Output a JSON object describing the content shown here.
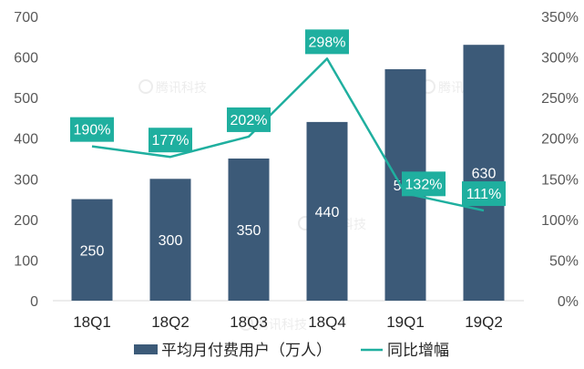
{
  "chart_data": {
    "type": "bar",
    "categories": [
      "18Q1",
      "18Q2",
      "18Q3",
      "18Q4",
      "19Q1",
      "19Q2"
    ],
    "series": [
      {
        "name": "平均月付费用户（万人）",
        "type": "bar",
        "axis": "left",
        "values": [
          250,
          300,
          350,
          440,
          570,
          630
        ],
        "labels": [
          "250",
          "300",
          "350",
          "440",
          "570",
          "630"
        ]
      },
      {
        "name": "同比增幅",
        "type": "line",
        "axis": "right",
        "values": [
          190,
          177,
          202,
          298,
          132,
          111
        ],
        "labels": [
          "190%",
          "177%",
          "202%",
          "298%",
          "132%",
          "111%"
        ]
      }
    ],
    "y_left": {
      "min": 0,
      "max": 700,
      "step": 100,
      "ticks": [
        "0",
        "100",
        "200",
        "300",
        "400",
        "500",
        "600",
        "700"
      ]
    },
    "y_right": {
      "min": 0,
      "max": 350,
      "step": 50,
      "ticks": [
        "0%",
        "50%",
        "100%",
        "150%",
        "200%",
        "250%",
        "300%",
        "350%"
      ]
    },
    "grid": false,
    "legend_position": "bottom",
    "colors": {
      "bar": "#3C5A78",
      "line": "#1FAF9F",
      "label_box": "#1FAF9F"
    }
  },
  "legend": {
    "bar_label": "平均月付费用户（万人）",
    "line_label": "同比增幅"
  },
  "watermark": "腾讯科技"
}
